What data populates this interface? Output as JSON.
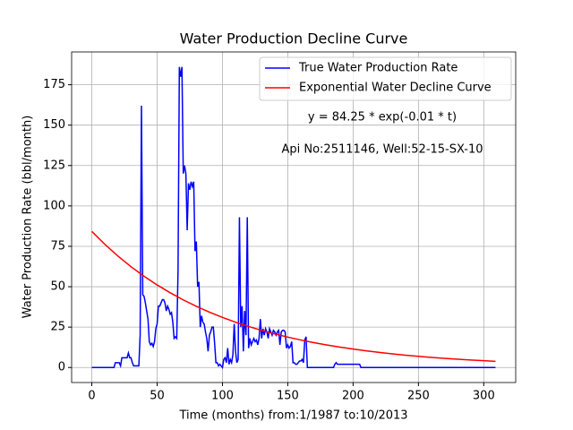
{
  "chart_data": {
    "type": "line",
    "title": "Water Production Decline Curve",
    "xlabel": "Time (months) from:1/1987 to:10/2013",
    "ylabel": "Water Production Rate (bbl/month)",
    "annotations": [
      "y = 84.25 * exp(-0.01 * t)",
      "Api No:2511146, Well:52-15-SX-10"
    ],
    "xlim": [
      -15.45,
      324.45
    ],
    "ylim": [
      -9.3,
      195.3
    ],
    "xticks": [
      0,
      50,
      100,
      150,
      200,
      250,
      300
    ],
    "yticks": [
      0,
      25,
      50,
      75,
      100,
      125,
      150,
      175
    ],
    "grid": true,
    "legend": "upper right",
    "series": [
      {
        "name": "True Water Production Rate",
        "color": "#0000ff",
        "x": [
          0,
          17,
          18,
          19,
          20,
          21,
          22,
          23,
          27,
          28,
          29,
          30,
          31,
          32,
          36,
          37,
          38,
          39,
          40,
          41,
          42,
          43,
          44,
          45,
          46,
          47,
          48,
          49,
          50,
          51,
          52,
          53,
          54,
          55,
          56,
          57,
          58,
          59,
          60,
          61,
          62,
          63,
          64,
          65,
          66,
          67,
          68,
          69,
          70,
          71,
          72,
          73,
          74,
          75,
          76,
          77,
          78,
          79,
          80,
          81,
          82,
          83,
          84,
          85,
          86,
          87,
          88,
          89,
          90,
          91,
          92,
          93,
          94,
          95,
          96,
          97,
          98,
          99,
          100,
          101,
          102,
          103,
          104,
          105,
          106,
          107,
          108,
          109,
          110,
          111,
          112,
          113,
          114,
          115,
          116,
          117,
          118,
          119,
          120,
          121,
          122,
          123,
          124,
          125,
          126,
          127,
          128,
          129,
          130,
          131,
          132,
          133,
          134,
          135,
          136,
          137,
          138,
          139,
          140,
          141,
          142,
          143,
          144,
          145,
          146,
          147,
          148,
          149,
          150,
          151,
          152,
          153,
          154,
          155,
          156,
          157,
          158,
          159,
          160,
          161,
          162,
          163,
          164,
          165,
          185,
          186,
          187,
          188,
          205,
          206,
          309
        ],
        "values": [
          0,
          0,
          3,
          3,
          3,
          3,
          1,
          6,
          6,
          9,
          6,
          6,
          3,
          1,
          1,
          20,
          162,
          45,
          44,
          40,
          35,
          30,
          16,
          14,
          15,
          13,
          16,
          24,
          27,
          38,
          38,
          40,
          42,
          42,
          40,
          35,
          38,
          36,
          33,
          34,
          28,
          18,
          19,
          18,
          60,
          186,
          180,
          186,
          120,
          125,
          120,
          85,
          114,
          110,
          115,
          112,
          115,
          72,
          78,
          50,
          53,
          25,
          32,
          28,
          27,
          22,
          18,
          10,
          20,
          22,
          25,
          25,
          15,
          3,
          3,
          1,
          2,
          1,
          0,
          5,
          6,
          3,
          12,
          2,
          5,
          3,
          8,
          27,
          10,
          3,
          5,
          93,
          25,
          38,
          10,
          35,
          20,
          93,
          12,
          18,
          14,
          16,
          18,
          16,
          17,
          14,
          18,
          30,
          18,
          24,
          20,
          24,
          22,
          18,
          24,
          22,
          20,
          23,
          22,
          20,
          22,
          23,
          14,
          22,
          23,
          23,
          22,
          12,
          14,
          12,
          13,
          16,
          3,
          3,
          2,
          2,
          3,
          4,
          4,
          5,
          3,
          17,
          19,
          0,
          0,
          2,
          3,
          2,
          2,
          0,
          0
        ]
      },
      {
        "name": "Exponential Water Decline Curve",
        "color": "#ff0000",
        "x": [
          0,
          10,
          20,
          30,
          40,
          50,
          60,
          70,
          80,
          90,
          100,
          110,
          120,
          130,
          140,
          150,
          160,
          170,
          180,
          190,
          200,
          210,
          220,
          230,
          240,
          250,
          260,
          270,
          280,
          290,
          300,
          309
        ],
        "values": [
          84.25,
          76.23,
          68.98,
          62.41,
          56.47,
          51.1,
          46.24,
          41.84,
          37.86,
          34.25,
          30.99,
          28.04,
          25.38,
          22.96,
          20.78,
          18.8,
          17.01,
          15.39,
          13.93,
          12.6,
          11.4,
          10.32,
          9.34,
          8.45,
          7.64,
          6.92,
          6.26,
          5.66,
          5.12,
          4.64,
          4.19,
          3.83
        ]
      }
    ]
  }
}
